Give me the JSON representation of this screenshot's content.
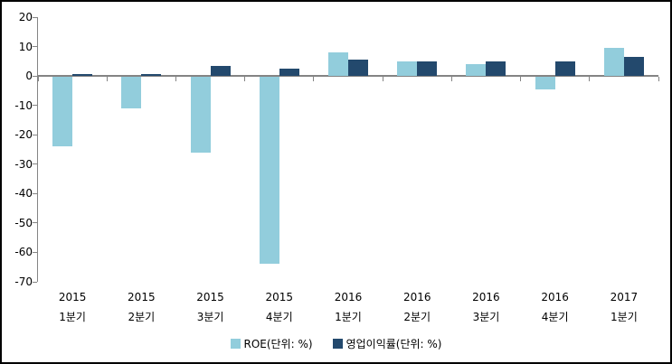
{
  "chart_data": {
    "type": "bar",
    "categories": [
      {
        "line1": "2015",
        "line2": "1분기"
      },
      {
        "line1": "2015",
        "line2": "2분기"
      },
      {
        "line1": "2015",
        "line2": "3분기"
      },
      {
        "line1": "2015",
        "line2": "4분기"
      },
      {
        "line1": "2016",
        "line2": "1분기"
      },
      {
        "line1": "2016",
        "line2": "2분기"
      },
      {
        "line1": "2016",
        "line2": "3분기"
      },
      {
        "line1": "2016",
        "line2": "4분기"
      },
      {
        "line1": "2017",
        "line2": "1분기"
      }
    ],
    "series": [
      {
        "name": "ROE(단위: %)",
        "color": "#92CDDC",
        "values": [
          -24,
          -11,
          -26,
          -64,
          8,
          5,
          4,
          -4.5,
          9.5
        ]
      },
      {
        "name": "영업이익률(단위: %)",
        "color": "#23496D",
        "values": [
          0.5,
          0.5,
          3.5,
          2.5,
          5.5,
          5,
          4.8,
          4.8,
          6.5
        ]
      }
    ],
    "title": "",
    "xlabel": "",
    "ylabel": "",
    "ylim": [
      -70,
      20
    ],
    "y_ticks": [
      20,
      10,
      0,
      -10,
      -20,
      -30,
      -40,
      -50,
      -60,
      -70
    ],
    "grid": false,
    "legend_position": "bottom"
  },
  "legend": {
    "roe_label": "ROE(단위: %)",
    "opm_label": "영업이익률(단위: %)"
  },
  "colors": {
    "axis": "#848484",
    "text": "#000000",
    "background": "#FFFFFF",
    "border": "#000000",
    "roe": "#92CDDC",
    "opm": "#23496D"
  }
}
